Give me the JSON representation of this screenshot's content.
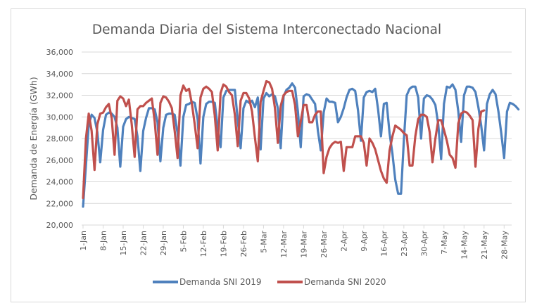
{
  "chart_data": {
    "type": "line",
    "title": "Demanda Diaria del Sistema Interconectado Nacional",
    "xlabel": "",
    "ylabel": "Demanda de Energía (GWh)",
    "ylim": [
      20000,
      36000
    ],
    "yticks": [
      20000,
      22000,
      24000,
      26000,
      28000,
      30000,
      32000,
      34000,
      36000
    ],
    "ytick_labels": [
      "20,000",
      "22,000",
      "24,000",
      "26,000",
      "28,000",
      "30,000",
      "32,000",
      "34,000",
      "36,000"
    ],
    "x_days_range": [
      1,
      151
    ],
    "xtick_labels": [
      "1-Jan",
      "8-Jan",
      "15-Jan",
      "22-Jan",
      "29-Jan",
      "5-Feb",
      "12-Feb",
      "19-Feb",
      "26-Feb",
      "5-Mar",
      "12-Mar",
      "19-Mar",
      "26-Mar",
      "2-Apr",
      "9-Apr",
      "16-Apr",
      "23-Apr",
      "30-Apr",
      "7-May",
      "14-May",
      "21-May",
      "28-May"
    ],
    "xtick_days": [
      1,
      8,
      15,
      22,
      29,
      36,
      43,
      50,
      57,
      64,
      71,
      78,
      85,
      92,
      99,
      106,
      113,
      120,
      127,
      134,
      141,
      148
    ],
    "grid": true,
    "legend_position": "bottom",
    "colors": {
      "series_2019": "#4f81bd",
      "series_2020": "#c0504d",
      "grid": "#d9d9d9",
      "text": "#595959"
    },
    "series": [
      {
        "name": "Demanda SNI 2019",
        "start_day": 1,
        "values": [
          21700,
          25500,
          29300,
          30200,
          29900,
          28600,
          25800,
          28800,
          30200,
          30400,
          30300,
          30000,
          29000,
          25400,
          29100,
          29800,
          30000,
          29900,
          29800,
          28200,
          25000,
          28700,
          29900,
          30800,
          30800,
          30700,
          29500,
          25900,
          29000,
          30200,
          30300,
          30300,
          30200,
          28500,
          25500,
          30000,
          31100,
          31200,
          31400,
          31300,
          29800,
          25700,
          30000,
          31200,
          31400,
          31400,
          31300,
          29000,
          27200,
          31800,
          32400,
          32500,
          32500,
          32500,
          29700,
          27100,
          30800,
          31500,
          31300,
          31500,
          30900,
          31800,
          27000,
          31700,
          32200,
          31900,
          32100,
          31900,
          30800,
          27100,
          31900,
          32500,
          32700,
          33100,
          32700,
          30500,
          27200,
          31900,
          32100,
          32000,
          31600,
          31200,
          28700,
          26900,
          30400,
          31700,
          31400,
          31400,
          31300,
          29500,
          30000,
          30800,
          31800,
          32500,
          32600,
          32400,
          30600,
          27800,
          31800,
          32300,
          32400,
          32300,
          32600,
          30700,
          28200,
          31200,
          31300,
          28500,
          26600,
          24200,
          22900,
          22900,
          27800,
          32000,
          32600,
          32800,
          32800,
          31800,
          28000,
          31700,
          32000,
          31900,
          31600,
          31100,
          29300,
          26100,
          31200,
          32800,
          32700,
          33000,
          32500,
          30500,
          27700,
          32000,
          32800,
          32800,
          32700,
          32300,
          30900,
          29200,
          26900,
          31200,
          32100,
          32500,
          32100,
          30500,
          28500,
          26200,
          30500,
          31300,
          31200,
          31000,
          30700
        ]
      },
      {
        "name": "Demanda SNI 2020",
        "start_day": 1,
        "values": [
          22500,
          28000,
          30300,
          28700,
          25100,
          29300,
          30300,
          30400,
          30900,
          31200,
          29900,
          26500,
          31500,
          31900,
          31700,
          31000,
          31600,
          29300,
          26300,
          30700,
          31000,
          31000,
          31300,
          31500,
          31700,
          29600,
          26500,
          31300,
          31900,
          31800,
          31400,
          30800,
          28700,
          26200,
          32000,
          32900,
          32400,
          32600,
          31200,
          29300,
          27100,
          31800,
          32600,
          32800,
          32600,
          32300,
          30100,
          26900,
          32200,
          33000,
          32800,
          32300,
          32000,
          30200,
          27300,
          31500,
          32200,
          32200,
          31700,
          30500,
          28100,
          25900,
          31400,
          32400,
          33300,
          33200,
          32600,
          30800,
          27600,
          31000,
          32000,
          32300,
          32400,
          32400,
          31100,
          28200,
          29600,
          31100,
          31100,
          29500,
          29500,
          30200,
          30500,
          30500,
          24800,
          26300,
          27100,
          27500,
          27700,
          27600,
          27700,
          25000,
          27200,
          27200,
          27200,
          28200,
          28200,
          28200,
          27600,
          25500,
          28000,
          27600,
          27000,
          26000,
          25000,
          24300,
          23900,
          26900,
          28200,
          29200,
          29000,
          28800,
          28500,
          28300,
          25500,
          25500,
          28200,
          29800,
          30200,
          30200,
          30000,
          28600,
          25800,
          28000,
          29700,
          29700,
          28800,
          27800,
          26500,
          26200,
          25300,
          29400,
          30300,
          30500,
          30400,
          30100,
          29700,
          25400,
          28900,
          30500,
          30600
        ]
      }
    ]
  }
}
